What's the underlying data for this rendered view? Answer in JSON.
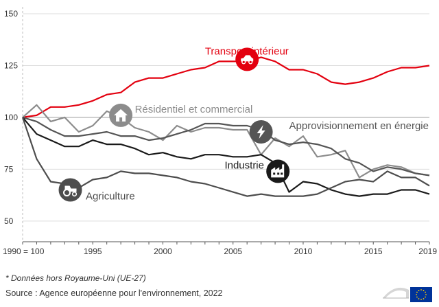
{
  "chart_data": {
    "type": "line",
    "x": [
      1990,
      1991,
      1992,
      1993,
      1994,
      1995,
      1996,
      1997,
      1998,
      1999,
      2000,
      2001,
      2002,
      2003,
      2004,
      2005,
      2006,
      2007,
      2008,
      2009,
      2010,
      2011,
      2012,
      2013,
      2014,
      2015,
      2016,
      2017,
      2018,
      2019
    ],
    "x_ticks": [
      {
        "x": 1990,
        "label": "1990 = 100"
      },
      {
        "x": 1995,
        "label": "1995"
      },
      {
        "x": 2000,
        "label": "2000"
      },
      {
        "x": 2005,
        "label": "2005"
      },
      {
        "x": 2010,
        "label": "2010"
      },
      {
        "x": 2015,
        "label": "2015"
      },
      {
        "x": 2019,
        "label": "2019"
      }
    ],
    "y_ticks": [
      50,
      75,
      100,
      125,
      150
    ],
    "ylim": [
      40,
      150
    ],
    "reference_line": 100,
    "title": "",
    "xlabel": "",
    "ylabel": "",
    "series": [
      {
        "name": "Transport intérieur",
        "color": "#e3000f",
        "icon": "car-icon",
        "label_at": [
          2003,
          132
        ],
        "icon_at": [
          2006,
          128
        ],
        "values": [
          100,
          101,
          105,
          105,
          106,
          108,
          111,
          112,
          117,
          119,
          119,
          121,
          123,
          124,
          127,
          127,
          127,
          129,
          127,
          123,
          123,
          121,
          117,
          116,
          117,
          119,
          122,
          124,
          124,
          125
        ]
      },
      {
        "name": "Résidentiel et commercial",
        "color": "#8c8c8c",
        "icon": "house-icon",
        "label_at": [
          1998,
          104
        ],
        "icon_at": [
          1997,
          101
        ],
        "values": [
          100,
          106,
          98,
          100,
          93,
          96,
          103,
          100,
          95,
          93,
          89,
          96,
          93,
          95,
          95,
          94,
          94,
          82,
          90,
          86,
          91,
          81,
          82,
          84,
          71,
          75,
          77,
          76,
          73,
          72
        ]
      },
      {
        "name": "Approvisionnement en énergie",
        "color": "#555555",
        "icon": "lightning-icon",
        "label_at": [
          2009,
          96
        ],
        "icon_at": [
          2007,
          93
        ],
        "values": [
          100,
          98,
          94,
          91,
          91,
          92,
          93,
          91,
          91,
          89,
          90,
          92,
          94,
          97,
          97,
          96,
          96,
          94,
          89,
          87,
          88,
          87,
          85,
          80,
          78,
          74,
          76,
          75,
          73,
          72
        ]
      },
      {
        "name": "Industrie",
        "color": "#1a1a1a",
        "icon": "factory-icon",
        "label_at": [
          2004.4,
          77
        ],
        "icon_at": [
          2008.2,
          74
        ],
        "values": [
          100,
          92,
          89,
          86,
          86,
          89,
          87,
          87,
          85,
          82,
          83,
          81,
          80,
          82,
          82,
          81,
          81,
          82,
          78,
          64,
          69,
          68,
          65,
          63,
          62,
          63,
          63,
          65,
          65,
          63
        ]
      },
      {
        "name": "Agriculture",
        "color": "#4d4d4d",
        "icon": "tractor-icon",
        "label_at": [
          1994.5,
          62
        ],
        "icon_at": [
          1993.4,
          65
        ],
        "values": [
          100,
          80,
          69,
          68,
          66,
          70,
          71,
          74,
          73,
          73,
          72,
          71,
          69,
          68,
          66,
          64,
          62,
          63,
          62,
          62,
          62,
          63,
          66,
          69,
          70,
          69,
          74,
          71,
          71,
          67
        ]
      }
    ]
  },
  "footnote": "* Données hors Royaume-Uni (UE-27)",
  "source": "Source : Agence européenne pour l'environnement, 2022",
  "colors": {
    "grid": "#dcdcdc",
    "reference": "#9a9a9a",
    "axis": "#555555",
    "eu_flag": "#003399",
    "eu_star": "#ffcc00"
  },
  "logo_icon": "european-parliament-logo-icon"
}
